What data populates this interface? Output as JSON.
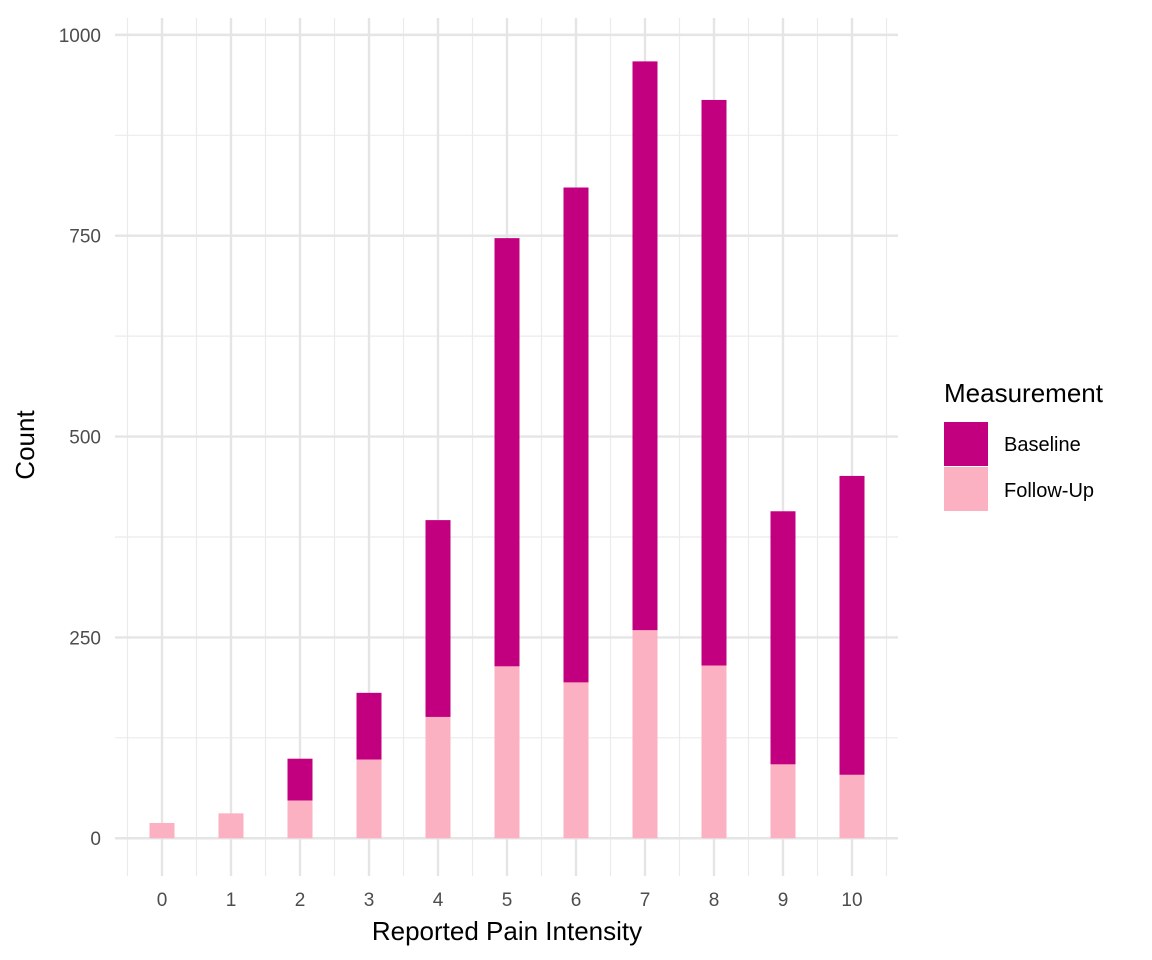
{
  "chart_data": {
    "type": "bar",
    "stacked": true,
    "categories": [
      "0",
      "1",
      "2",
      "3",
      "4",
      "5",
      "6",
      "7",
      "8",
      "9",
      "10"
    ],
    "series": [
      {
        "name": "Baseline",
        "color": "#C2007F",
        "values": [
          0,
          0,
          52,
          83,
          245,
          533,
          616,
          708,
          704,
          315,
          372
        ]
      },
      {
        "name": "Follow-Up",
        "color": "#FBB1C1",
        "values": [
          19,
          31,
          47,
          98,
          151,
          214,
          194,
          259,
          215,
          92,
          79
        ]
      }
    ],
    "title": "",
    "xlabel": "Reported Pain Intensity",
    "ylabel": "Count",
    "ylim": [
      -47,
      1021
    ],
    "yticks": [
      "0",
      "250",
      "500",
      "750",
      "1000"
    ],
    "ytick_values": [
      0,
      250,
      500,
      750,
      1000
    ],
    "grid": true,
    "legend": {
      "title": "Measurement",
      "position": "right"
    }
  }
}
